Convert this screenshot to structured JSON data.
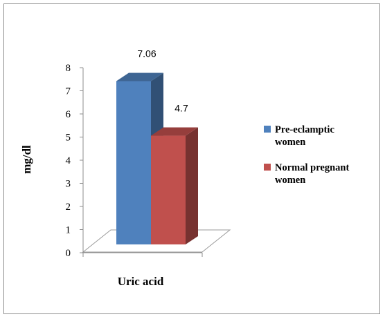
{
  "chart_data": {
    "type": "bar",
    "categories": [
      "Uric acid"
    ],
    "series": [
      {
        "name": "Pre-eclamptic women",
        "values": [
          7.06
        ],
        "color": "#4F81BD"
      },
      {
        "name": "Normal pregnant women",
        "values": [
          4.7
        ],
        "color": "#C0504D"
      }
    ],
    "data_labels": [
      "7.06",
      "4.7"
    ],
    "ylabel": "mg/dl",
    "xlabel": "Uric acid",
    "ylim": [
      0,
      8
    ],
    "yticks": [
      "0",
      "1",
      "2",
      "3",
      "4",
      "5",
      "6",
      "7",
      "8"
    ],
    "legend_position": "right",
    "legend_lines": [
      [
        "Pre-eclamptic",
        "women"
      ],
      [
        "Normal pregnant",
        "women"
      ]
    ],
    "style": "3d-column",
    "grid": false
  }
}
